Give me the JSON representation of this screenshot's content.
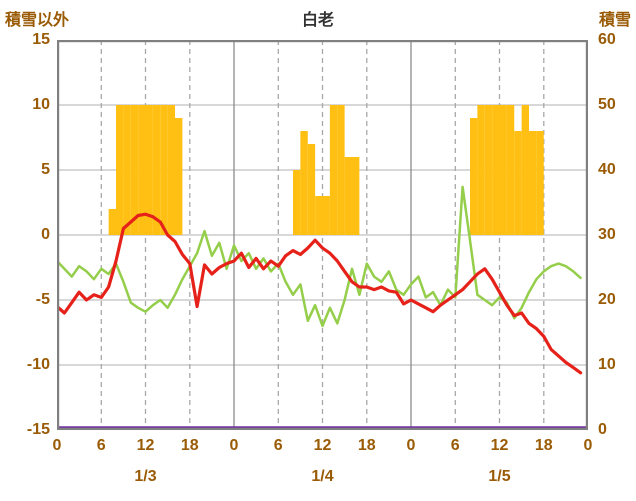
{
  "header": {
    "left_axis_title": "積雪以外",
    "station_title": "白老",
    "right_axis_title": "積雪"
  },
  "colors": {
    "bar": "#ffc013",
    "temp_line": "#e62119",
    "green_line": "#94ce4a",
    "purple_line": "#7030a0",
    "axis_text": "#9a5b06",
    "title_text": "#333333",
    "border": "#808080",
    "grid": "#c0c0c0",
    "day_grid": "#8c8c8c",
    "dash_grid": "#a8a8a8"
  },
  "chart_data": {
    "type": "line+bar",
    "title": "白老",
    "hours_total": 72,
    "days": [
      "1/3",
      "1/4",
      "1/5"
    ],
    "left_axis": {
      "label": "積雪以外",
      "min": -15,
      "max": 15,
      "ticks": [
        15,
        10,
        5,
        0,
        -5,
        -10,
        -15
      ]
    },
    "right_axis": {
      "label": "積雪",
      "min": 0,
      "max": 60,
      "ticks": [
        60,
        50,
        40,
        30,
        20,
        10,
        0
      ]
    },
    "x_tick_hours": [
      0,
      6,
      12,
      18,
      24,
      30,
      36,
      42,
      48,
      54,
      60,
      66,
      72
    ],
    "x_tick_labels": [
      "0",
      "6",
      "12",
      "18",
      "0",
      "6",
      "12",
      "18",
      "0",
      "6",
      "12",
      "18",
      "0"
    ],
    "grid": true,
    "series": [
      {
        "name": "sunshine-bars",
        "type": "bar",
        "axis": "left",
        "values": [
          0,
          0,
          0,
          0,
          0,
          0,
          0,
          2,
          10,
          10,
          10,
          10,
          10,
          10,
          10,
          10,
          9,
          0,
          0,
          0,
          0,
          0,
          0,
          0,
          0,
          0,
          0,
          0,
          0,
          0,
          0,
          0,
          5,
          8,
          7,
          3,
          3,
          10,
          10,
          6,
          6,
          0,
          0,
          0,
          0,
          0,
          0,
          0,
          0,
          0,
          0,
          0,
          0,
          0,
          0,
          0,
          9,
          10,
          10,
          10,
          10,
          10,
          8,
          10,
          8,
          8,
          0,
          0,
          0,
          0,
          0,
          0
        ]
      },
      {
        "name": "temperature-red",
        "type": "line",
        "axis": "left",
        "values": [
          -5.5,
          -6,
          -5.2,
          -4.4,
          -5,
          -4.6,
          -4.8,
          -4,
          -2,
          0.5,
          1,
          1.5,
          1.6,
          1.4,
          1,
          0,
          -0.5,
          -1.5,
          -2.2,
          -5.5,
          -2.3,
          -3,
          -2.5,
          -2.2,
          -2,
          -1.4,
          -2.5,
          -1.8,
          -2.6,
          -2,
          -2.4,
          -1.6,
          -1.2,
          -1.5,
          -1,
          -0.4,
          -1,
          -1.4,
          -2,
          -2.8,
          -3.6,
          -4,
          -4,
          -4.2,
          -4,
          -4.3,
          -4.4,
          -5.3,
          -5,
          -5.3,
          -5.6,
          -5.9,
          -5.4,
          -5,
          -4.6,
          -4.2,
          -3.6,
          -3,
          -2.6,
          -3.4,
          -4.4,
          -5.4,
          -6.2,
          -6,
          -6.8,
          -7.2,
          -7.8,
          -8.8,
          -9.3,
          -9.8,
          -10.2,
          -10.6
        ]
      },
      {
        "name": "green-series",
        "type": "line",
        "axis": "left",
        "values": [
          -2,
          -2.6,
          -3.2,
          -2.4,
          -2.8,
          -3.4,
          -2.6,
          -3,
          -2.2,
          -3.6,
          -5.2,
          -5.6,
          -5.9,
          -5.4,
          -5,
          -5.6,
          -4.6,
          -3.4,
          -2.4,
          -1.4,
          0.3,
          -1.6,
          -0.6,
          -2.6,
          -0.8,
          -2,
          -1.4,
          -2.6,
          -1.8,
          -2.8,
          -2.2,
          -3.6,
          -4.6,
          -3.8,
          -6.6,
          -5.4,
          -7,
          -5.6,
          -6.8,
          -5,
          -2.6,
          -4.6,
          -2.2,
          -3.2,
          -3.6,
          -2.8,
          -4.2,
          -4.6,
          -3.8,
          -3.2,
          -4.8,
          -4.4,
          -5.4,
          -4.2,
          -4.8,
          3.7,
          -0.4,
          -4.6,
          -5,
          -5.4,
          -4.8,
          -5.2,
          -6.4,
          -5.6,
          -4.4,
          -3.4,
          -2.8,
          -2.4,
          -2.2,
          -2.4,
          -2.8,
          -3.3
        ]
      },
      {
        "name": "snow-depth-purple",
        "type": "line",
        "axis": "right",
        "constant": 0
      }
    ]
  }
}
